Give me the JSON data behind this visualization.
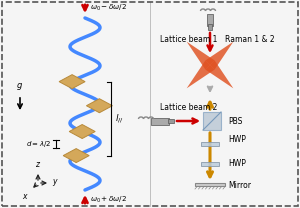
{
  "background_color": "#f5f5f5",
  "border_color": "#555555",
  "left_panel": {
    "wave_color": "#4488ff",
    "atom_color": "#d4a85a",
    "atom_edge_color": "#b88a3a",
    "arrow_color": "#cc0000",
    "axis_color": "#222222"
  },
  "right_panel": {
    "lattice_beam_color": "#e05020",
    "raman_color": "#cc0000",
    "vertical_beam_color": "#cc8800",
    "pbs_color": "#aabbcc",
    "fiber_color": "#888888",
    "hwp_color": "#bbccdd",
    "label_lb1": "Lattice beam 1",
    "label_lb2": "Lattice beam 2",
    "label_raman": "Raman 1 & 2",
    "label_hwp1": "HWP",
    "label_hwp2": "HWP",
    "label_pbs": "PBS",
    "label_mirror": "Mirror"
  }
}
